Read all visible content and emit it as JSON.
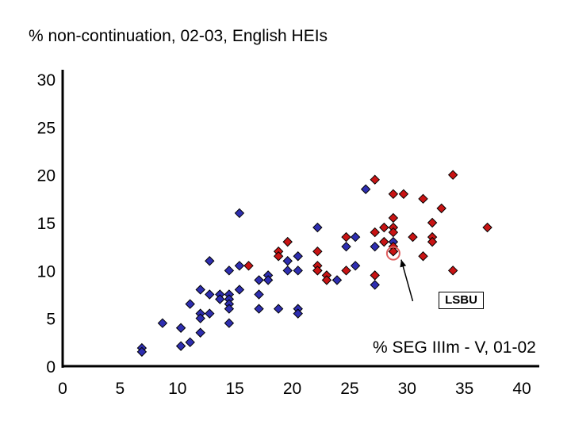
{
  "chart_data": {
    "type": "scatter",
    "title": "% non-continuation, 02-03, English HEIs",
    "xlabel": "% SEG IIIm - V, 01-02",
    "ylabel": "",
    "xlim": [
      0,
      40
    ],
    "ylim": [
      0,
      30
    ],
    "xticks": [
      "0",
      "5",
      "10",
      "15",
      "20",
      "25",
      "30",
      "35",
      "40"
    ],
    "yticks": [
      "0",
      "5",
      "10",
      "15",
      "20",
      "25",
      "30"
    ],
    "grid": false,
    "series": [
      {
        "color": "#2e2eb0",
        "points": [
          [
            6.9,
            1.9
          ],
          [
            6.9,
            1.5
          ],
          [
            8.7,
            4.5
          ],
          [
            10.3,
            4.0
          ],
          [
            10.3,
            2.1
          ],
          [
            11.1,
            2.5
          ],
          [
            11.1,
            6.5
          ],
          [
            12.0,
            8.0
          ],
          [
            12.0,
            5.5
          ],
          [
            12.0,
            5.0
          ],
          [
            12.0,
            3.5
          ],
          [
            12.8,
            7.5
          ],
          [
            12.8,
            5.5
          ],
          [
            12.8,
            11.0
          ],
          [
            13.7,
            7.5
          ],
          [
            13.7,
            7.0
          ],
          [
            14.5,
            7.5
          ],
          [
            14.5,
            7.0
          ],
          [
            14.5,
            6.5
          ],
          [
            14.5,
            6.0
          ],
          [
            14.5,
            10.0
          ],
          [
            14.5,
            4.5
          ],
          [
            15.4,
            8.0
          ],
          [
            15.4,
            10.5
          ],
          [
            15.4,
            16.0
          ],
          [
            17.1,
            9.0
          ],
          [
            17.1,
            7.5
          ],
          [
            17.1,
            6.0
          ],
          [
            17.9,
            9.5
          ],
          [
            17.9,
            9.0
          ],
          [
            18.8,
            6.0
          ],
          [
            19.6,
            11.0
          ],
          [
            19.6,
            10.0
          ],
          [
            20.5,
            11.5
          ],
          [
            20.5,
            10.0
          ],
          [
            20.5,
            6.0
          ],
          [
            20.5,
            5.5
          ],
          [
            22.2,
            14.5
          ],
          [
            22.2,
            10.0
          ],
          [
            23.9,
            9.0
          ],
          [
            24.7,
            12.5
          ],
          [
            25.5,
            13.5
          ],
          [
            25.5,
            10.5
          ],
          [
            26.4,
            18.5
          ],
          [
            27.2,
            12.5
          ],
          [
            27.2,
            8.5
          ],
          [
            28.8,
            13.0
          ],
          [
            28.8,
            12.0
          ]
        ]
      },
      {
        "color": "#c81414",
        "points": [
          [
            16.2,
            10.5
          ],
          [
            18.8,
            12.0
          ],
          [
            18.8,
            11.5
          ],
          [
            19.6,
            13.0
          ],
          [
            22.2,
            12.0
          ],
          [
            22.2,
            10.5
          ],
          [
            22.2,
            10.0
          ],
          [
            23.0,
            9.5
          ],
          [
            23.0,
            9.0
          ],
          [
            24.7,
            13.5
          ],
          [
            24.7,
            10.0
          ],
          [
            27.2,
            19.5
          ],
          [
            27.2,
            14.0
          ],
          [
            27.2,
            9.5
          ],
          [
            28.0,
            14.5
          ],
          [
            28.0,
            13.0
          ],
          [
            28.8,
            18.0
          ],
          [
            28.8,
            15.5
          ],
          [
            28.8,
            14.5
          ],
          [
            28.8,
            14.0
          ],
          [
            28.8,
            12.5
          ],
          [
            28.8,
            12.0
          ],
          [
            29.7,
            18.0
          ],
          [
            30.5,
            13.5
          ],
          [
            31.4,
            17.5
          ],
          [
            31.4,
            11.5
          ],
          [
            32.2,
            15.0
          ],
          [
            32.2,
            13.5
          ],
          [
            32.2,
            13.0
          ],
          [
            33.0,
            16.5
          ],
          [
            34.0,
            20.0
          ],
          [
            34.0,
            10.0
          ],
          [
            37.0,
            14.5
          ]
        ]
      }
    ],
    "highlight": {
      "label": "LSBU",
      "x": 28.8,
      "y": 11.8,
      "color": "#e06060",
      "label_x": 30.5,
      "label_y": 6.8
    }
  }
}
